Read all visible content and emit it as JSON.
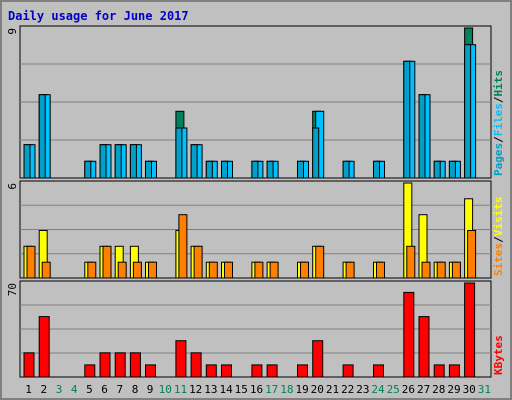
{
  "title": "Daily usage for June 2017",
  "colors": {
    "background": "#C0C0C0",
    "plot_area": "#C0C0C0",
    "grid": "#808080",
    "title": "#0000CC",
    "hits": "#00805C",
    "files": "#00C0FF",
    "pages": "#00A0C8",
    "visits": "#FFFF00",
    "sites": "#FF8000",
    "kbytes": "#FF0000",
    "weekday_label": "#000000",
    "weekend_label": "#00805C"
  },
  "chart_data": [
    {
      "type": "bar",
      "panel": "top",
      "ylabel_parts": [
        "Pages",
        "/",
        "Files",
        "/",
        "Hits"
      ],
      "y_max_label": "9",
      "ylim": [
        0,
        9
      ],
      "categories": [
        "1",
        "2",
        "3",
        "4",
        "5",
        "6",
        "7",
        "8",
        "9",
        "10",
        "11",
        "12",
        "13",
        "14",
        "15",
        "16",
        "17",
        "18",
        "19",
        "20",
        "21",
        "22",
        "23",
        "24",
        "25",
        "26",
        "27",
        "28",
        "29",
        "30",
        "31"
      ],
      "weekend_days": [
        "3",
        "4",
        "10",
        "11",
        "17",
        "18",
        "24",
        "25",
        "31"
      ],
      "series": [
        {
          "name": "Hits",
          "values": [
            2,
            5,
            0,
            0,
            1,
            2,
            2,
            2,
            1,
            0,
            4,
            2,
            1,
            1,
            0,
            1,
            1,
            0,
            1,
            4,
            0,
            1,
            0,
            1,
            0,
            7,
            5,
            1,
            1,
            9,
            0
          ]
        },
        {
          "name": "Files",
          "values": [
            2,
            5,
            0,
            0,
            1,
            2,
            2,
            2,
            1,
            0,
            3,
            2,
            1,
            1,
            0,
            1,
            1,
            0,
            1,
            4,
            0,
            1,
            0,
            1,
            0,
            7,
            5,
            1,
            1,
            8,
            0
          ]
        },
        {
          "name": "Pages",
          "values": [
            2,
            5,
            0,
            0,
            1,
            2,
            2,
            2,
            1,
            0,
            3,
            2,
            1,
            1,
            0,
            1,
            1,
            0,
            1,
            3,
            0,
            1,
            0,
            1,
            0,
            7,
            5,
            1,
            1,
            8,
            0
          ]
        }
      ]
    },
    {
      "type": "bar",
      "panel": "middle",
      "ylabel_parts": [
        "Sites",
        "/",
        "Visits"
      ],
      "y_max_label": "6",
      "ylim": [
        0,
        6
      ],
      "categories": [
        "1",
        "2",
        "3",
        "4",
        "5",
        "6",
        "7",
        "8",
        "9",
        "10",
        "11",
        "12",
        "13",
        "14",
        "15",
        "16",
        "17",
        "18",
        "19",
        "20",
        "21",
        "22",
        "23",
        "24",
        "25",
        "26",
        "27",
        "28",
        "29",
        "30",
        "31"
      ],
      "series": [
        {
          "name": "Visits",
          "values": [
            2,
            3,
            0,
            0,
            1,
            2,
            2,
            2,
            1,
            0,
            3,
            2,
            1,
            1,
            0,
            1,
            1,
            0,
            1,
            2,
            0,
            1,
            0,
            1,
            0,
            6,
            4,
            1,
            1,
            5,
            0
          ]
        },
        {
          "name": "Sites",
          "values": [
            2,
            1,
            0,
            0,
            1,
            2,
            1,
            1,
            1,
            0,
            4,
            2,
            1,
            1,
            0,
            1,
            1,
            0,
            1,
            2,
            0,
            1,
            0,
            1,
            0,
            2,
            1,
            1,
            1,
            3,
            0
          ]
        }
      ]
    },
    {
      "type": "bar",
      "panel": "bottom",
      "ylabel_parts": [
        "KBytes"
      ],
      "y_max_label": "70",
      "ylim": [
        0,
        70
      ],
      "categories": [
        "1",
        "2",
        "3",
        "4",
        "5",
        "6",
        "7",
        "8",
        "9",
        "10",
        "11",
        "12",
        "13",
        "14",
        "15",
        "16",
        "17",
        "18",
        "19",
        "20",
        "21",
        "22",
        "23",
        "24",
        "25",
        "26",
        "27",
        "28",
        "29",
        "30",
        "31"
      ],
      "series": [
        {
          "name": "KBytes",
          "values": [
            18,
            45,
            0,
            0,
            9,
            18,
            18,
            18,
            9,
            0,
            27,
            18,
            9,
            9,
            0,
            9,
            9,
            0,
            9,
            27,
            0,
            9,
            0,
            9,
            0,
            63,
            45,
            9,
            9,
            70,
            0
          ]
        }
      ]
    }
  ]
}
